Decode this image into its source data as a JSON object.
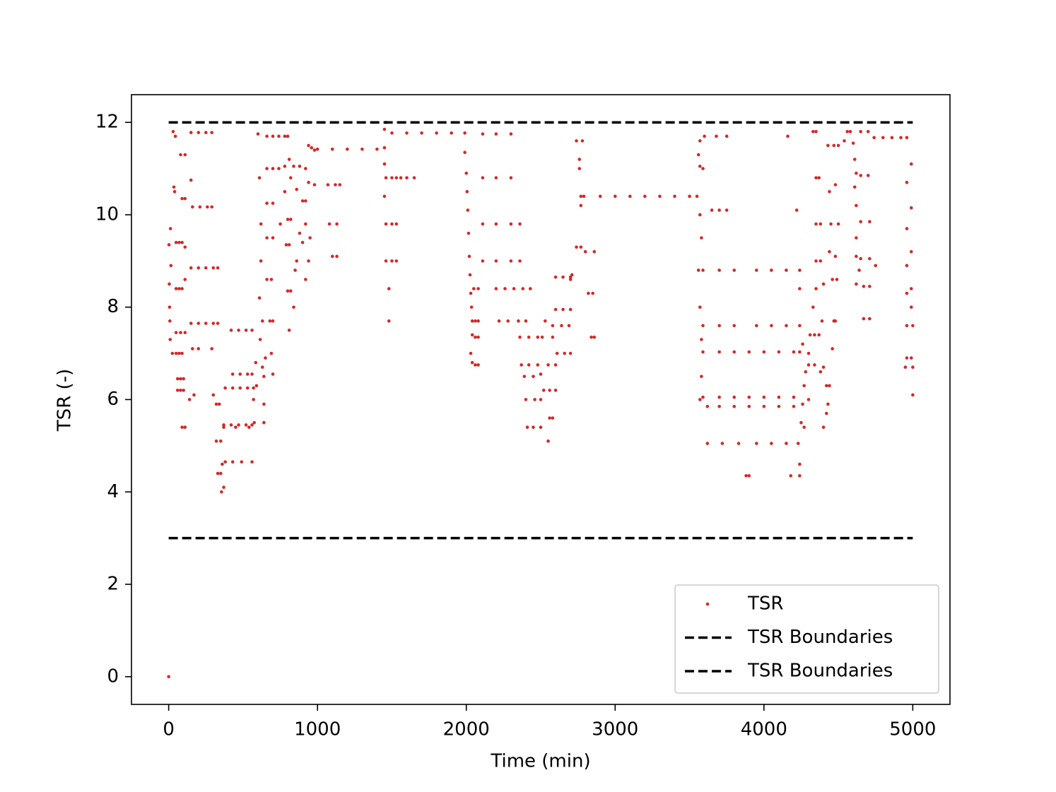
{
  "chart_data": {
    "type": "scatter",
    "xlabel": "Time (min)",
    "ylabel": "TSR (-)",
    "xlim": [
      -250,
      5250
    ],
    "ylim": [
      -0.6,
      12.6
    ],
    "xticks": [
      0,
      1000,
      2000,
      3000,
      4000,
      5000
    ],
    "yticks": [
      0,
      2,
      4,
      6,
      8,
      10,
      12
    ],
    "grid": false,
    "legend": "lower right",
    "series": [
      {
        "name": "TSR",
        "color": "#d62728",
        "marker": "dot",
        "x": [
          0,
          2,
          4,
          6,
          8,
          10,
          12,
          15,
          25,
          30,
          35,
          40,
          45,
          50,
          70,
          90,
          50,
          70,
          90,
          50,
          80,
          110,
          50,
          70,
          90,
          60,
          80,
          100,
          60,
          80,
          100,
          90,
          110,
          80,
          110,
          90,
          110,
          110,
          110,
          150,
          140,
          150,
          200,
          250,
          290,
          160,
          210,
          260,
          290,
          150,
          200,
          250,
          300,
          330,
          150,
          200,
          250,
          300,
          330,
          160,
          200,
          290,
          170,
          300,
          320,
          340,
          320,
          350,
          330,
          350,
          360,
          370,
          355,
          380,
          430,
          480,
          530,
          570,
          370,
          420,
          470,
          520,
          560,
          420,
          470,
          520,
          560,
          430,
          480,
          530,
          560,
          370,
          450,
          540,
          380,
          430,
          490,
          560,
          570,
          575,
          585,
          590,
          600,
          610,
          620,
          620,
          610,
          630,
          615,
          640,
          640,
          640,
          630,
          650,
          660,
          700,
          740,
          780,
          660,
          700,
          740,
          780,
          660,
          700,
          660,
          700,
          660,
          690,
          680,
          700,
          690,
          700,
          750,
          780,
          800,
          810,
          820,
          800,
          820,
          790,
          810,
          820,
          800,
          810,
          840,
          850,
          860,
          840,
          880,
          920,
          860,
          900,
          920,
          880,
          900,
          920,
          940,
          920,
          940,
          960,
          930,
          980,
          940,
          980,
          950,
          1000,
          1100,
          1200,
          1300,
          1400,
          1450,
          1070,
          1120,
          1150,
          1080,
          1130,
          1100,
          1130,
          1450,
          1460,
          1460,
          1500,
          1530,
          1460,
          1500,
          1530,
          1460,
          1500,
          1530,
          1480,
          1480,
          1450,
          1450,
          1500,
          1600,
          1700,
          1800,
          1900,
          1990,
          1560,
          1600,
          1650,
          1990,
          2000,
          2005,
          2010,
          2015,
          2020,
          2025,
          2030,
          2035,
          2040,
          2040,
          2030,
          2040,
          2050,
          2080,
          2060,
          2080,
          2060,
          2080,
          2060,
          2080,
          2110,
          2200,
          2300,
          2110,
          2200,
          2300,
          2110,
          2200,
          2300,
          2360,
          2110,
          2200,
          2300,
          2360,
          2200,
          2260,
          2320,
          2380,
          2430,
          2220,
          2280,
          2350,
          2400,
          2360,
          2420,
          2480,
          2510,
          2370,
          2420,
          2480,
          2550,
          2600,
          2390,
          2450,
          2500,
          2400,
          2460,
          2500,
          2410,
          2450,
          2500,
          2520,
          2560,
          2600,
          2560,
          2580,
          2550,
          2530,
          2580,
          2600,
          2650,
          2700,
          2600,
          2650,
          2700,
          2580,
          2640,
          2690,
          2610,
          2660,
          2700,
          2700,
          2710,
          2740,
          2780,
          2760,
          2760,
          2770,
          2770,
          2740,
          2770,
          2800,
          2860,
          2820,
          2850,
          2840,
          2860,
          2790,
          2900,
          3000,
          3100,
          3200,
          3300,
          3400,
          3500,
          3550,
          3570,
          3560,
          3570,
          3590,
          3570,
          3580,
          3560,
          3570,
          3580,
          3570,
          3580,
          3600,
          3680,
          3750,
          3650,
          3700,
          3750,
          3590,
          3700,
          3800,
          3950,
          4050,
          4150,
          4240,
          3590,
          3700,
          3800,
          3950,
          4050,
          4150,
          4240,
          3590,
          3700,
          3800,
          3900,
          4000,
          4100,
          4200,
          4240,
          3590,
          3700,
          3800,
          3900,
          4000,
          4100,
          4200,
          3620,
          3700,
          3800,
          3900,
          4000,
          4100,
          4200,
          3620,
          3720,
          3830,
          3950,
          4050,
          4150,
          4230,
          3880,
          3900,
          4180,
          4240,
          4240,
          4250,
          4260,
          4270,
          4280,
          4300,
          4340,
          4380,
          4270,
          4300,
          4160,
          4220,
          4240,
          4260,
          4310,
          4340,
          4370,
          4300,
          4330,
          4350,
          4400,
          4390,
          4400,
          4420,
          4420,
          4400,
          4430,
          4440,
          4460,
          4470,
          4330,
          4350,
          4350,
          4370,
          4350,
          4380,
          4350,
          4380,
          4430,
          4470,
          4500,
          4440,
          4480,
          4450,
          4500,
          4440,
          4480,
          4460,
          4490,
          4480,
          4540,
          4560,
          4580,
          4600,
          4610,
          4620,
          4610,
          4620,
          4620,
          4620,
          4640,
          4620,
          4650,
          4700,
          4650,
          4700,
          4650,
          4710,
          4650,
          4710,
          4670,
          4710,
          4670,
          4710,
          4750,
          4740,
          4800,
          4860,
          4920,
          4960,
          4990,
          4960,
          4990,
          4960,
          4990,
          4960,
          4990,
          4960,
          4990,
          4960,
          5000,
          4960,
          4990,
          5000,
          5000,
          4950
        ],
        "values": [
          0,
          9.35,
          8.5,
          8.0,
          7.7,
          7.3,
          9.7,
          8.9,
          7.0,
          11.8,
          10.6,
          10.5,
          11.7,
          9.4,
          9.4,
          9.4,
          8.4,
          8.4,
          8.4,
          7.45,
          7.45,
          7.45,
          7.0,
          7.0,
          7.0,
          6.45,
          6.45,
          6.45,
          6.2,
          6.2,
          6.2,
          5.4,
          5.4,
          11.3,
          11.3,
          10.35,
          10.35,
          9.3,
          8.6,
          10.75,
          6.0,
          11.78,
          11.78,
          11.78,
          11.78,
          10.17,
          10.17,
          10.17,
          10.17,
          8.85,
          8.85,
          8.85,
          8.85,
          8.85,
          7.65,
          7.65,
          7.65,
          7.65,
          7.65,
          7.1,
          7.1,
          7.1,
          6.1,
          6.1,
          5.9,
          5.9,
          5.1,
          5.1,
          4.4,
          4.4,
          4.6,
          4.1,
          4.0,
          6.25,
          6.25,
          6.25,
          6.25,
          6.25,
          5.45,
          5.45,
          5.45,
          5.45,
          5.45,
          7.5,
          7.5,
          7.5,
          7.5,
          6.55,
          6.55,
          6.55,
          6.55,
          5.4,
          5.4,
          5.4,
          4.65,
          4.65,
          4.65,
          4.65,
          6.0,
          5.5,
          6.8,
          6.3,
          11.75,
          10.8,
          9.8,
          9.0,
          8.2,
          7.7,
          7.3,
          6.5,
          5.9,
          5.5,
          6.7,
          6.9,
          11.7,
          11.7,
          11.7,
          11.7,
          11.0,
          11.0,
          11.0,
          11.05,
          10.25,
          10.25,
          9.5,
          9.5,
          8.6,
          8.6,
          7.7,
          7.7,
          7.0,
          6.55,
          9.8,
          10.5,
          11.7,
          11.2,
          10.8,
          9.9,
          9.9,
          9.35,
          9.35,
          8.35,
          8.35,
          7.5,
          8.0,
          8.8,
          9.0,
          11.05,
          11.05,
          11.0,
          10.55,
          10.3,
          10.3,
          9.6,
          9.4,
          9.8,
          9.0,
          8.6,
          11.5,
          11.45,
          12.0,
          11.4,
          10.7,
          10.65,
          9.5,
          11.42,
          11.42,
          11.42,
          11.42,
          11.42,
          11.45,
          10.65,
          10.65,
          10.65,
          9.8,
          9.8,
          9.1,
          9.1,
          11.85,
          12.0,
          10.8,
          10.8,
          10.8,
          9.8,
          9.8,
          9.8,
          9.0,
          9.0,
          9.0,
          8.4,
          7.7,
          11.1,
          10.4,
          11.77,
          11.77,
          11.77,
          11.77,
          11.77,
          11.77,
          10.8,
          10.8,
          10.8,
          11.35,
          10.9,
          10.5,
          10.1,
          9.6,
          9.1,
          8.7,
          8.3,
          8.0,
          7.7,
          7.4,
          7.0,
          6.8,
          8.4,
          8.4,
          7.7,
          7.7,
          7.35,
          7.35,
          6.75,
          6.75,
          11.75,
          11.75,
          11.75,
          10.8,
          10.8,
          10.8,
          9.8,
          9.8,
          9.8,
          9.8,
          9.0,
          9.0,
          9.0,
          9.0,
          8.4,
          8.4,
          8.4,
          8.4,
          8.4,
          7.7,
          7.7,
          7.7,
          7.7,
          7.35,
          7.35,
          7.35,
          7.35,
          6.75,
          6.75,
          6.75,
          6.75,
          6.75,
          6.5,
          6.5,
          6.55,
          6.0,
          6.0,
          6.0,
          5.4,
          5.4,
          5.4,
          6.2,
          6.2,
          6.2,
          5.6,
          5.6,
          5.1,
          7.7,
          7.35,
          8.65,
          8.65,
          8.65,
          7.95,
          7.95,
          7.95,
          7.6,
          7.6,
          7.6,
          7.0,
          7.0,
          7.0,
          8.6,
          8.7,
          11.6,
          11.6,
          11.2,
          11.0,
          10.4,
          10.2,
          9.3,
          9.3,
          9.2,
          9.2,
          8.3,
          8.3,
          7.35,
          7.35,
          10.4,
          10.4,
          10.4,
          10.4,
          10.4,
          10.4,
          10.4,
          10.4,
          10.4,
          11.6,
          11.3,
          11.05,
          11.0,
          10.0,
          9.5,
          8.8,
          8.0,
          7.3,
          6.0,
          6.5,
          11.7,
          11.7,
          11.7,
          10.1,
          10.1,
          10.1,
          8.8,
          8.8,
          8.8,
          8.8,
          8.8,
          8.8,
          8.8,
          7.6,
          7.6,
          7.6,
          7.6,
          7.6,
          7.6,
          7.6,
          7.03,
          7.03,
          7.03,
          7.03,
          7.03,
          7.03,
          7.03,
          7.03,
          6.05,
          6.05,
          6.05,
          6.05,
          6.05,
          6.05,
          6.05,
          5.85,
          5.85,
          5.85,
          5.85,
          5.85,
          5.85,
          5.85,
          5.05,
          5.05,
          5.05,
          5.05,
          5.05,
          5.05,
          5.05,
          4.35,
          4.35,
          4.35,
          4.35,
          4.6,
          5.5,
          5.9,
          6.3,
          6.6,
          6.75,
          6.75,
          6.6,
          5.4,
          6.0,
          11.7,
          10.1,
          8.4,
          7.2,
          7.4,
          7.4,
          7.4,
          7.0,
          8.0,
          8.4,
          8.5,
          7.7,
          6.7,
          6.3,
          5.7,
          5.4,
          5.9,
          6.3,
          7.1,
          7.7,
          11.8,
          11.8,
          10.8,
          10.8,
          9.8,
          9.8,
          9.0,
          9.0,
          11.5,
          11.5,
          11.5,
          10.5,
          10.65,
          9.8,
          9.8,
          9.2,
          9.1,
          8.6,
          8.6,
          7.7,
          11.6,
          11.8,
          11.8,
          11.55,
          11.2,
          10.9,
          10.6,
          10.2,
          9.5,
          9.1,
          8.8,
          8.5,
          11.8,
          11.8,
          10.85,
          10.85,
          9.85,
          9.85,
          9.05,
          9.05,
          8.45,
          8.45,
          7.75,
          7.75,
          8.9,
          11.67,
          11.67,
          11.67,
          11.67,
          11.67,
          11.1,
          10.7,
          10.15,
          9.7,
          9.2,
          8.9,
          8.4,
          8.3,
          8.0,
          7.6,
          7.6,
          6.9,
          6.9,
          6.7,
          6.1,
          6.7
        ]
      },
      {
        "name": "TSR Boundaries",
        "color": "#000000",
        "line_style": "dashed",
        "x": [
          0,
          5000
        ],
        "values": [
          12,
          12
        ]
      },
      {
        "name": "TSR Boundaries",
        "color": "#000000",
        "line_style": "dashed",
        "x": [
          0,
          5000
        ],
        "values": [
          3,
          3
        ]
      }
    ]
  }
}
